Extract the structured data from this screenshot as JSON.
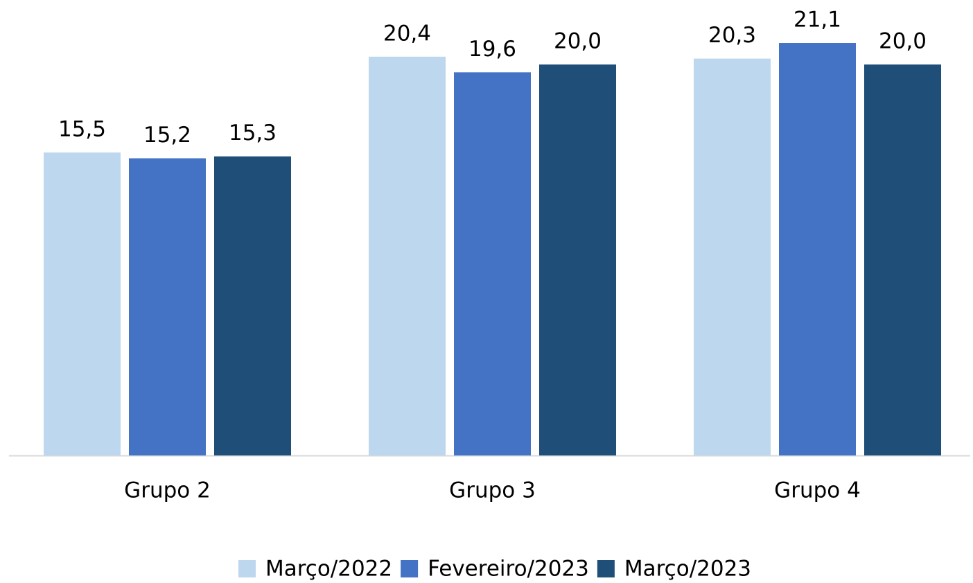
{
  "chart_data": {
    "type": "bar",
    "categories": [
      "Grupo 2",
      "Grupo 3",
      "Grupo 4"
    ],
    "series": [
      {
        "name": "Março/2022",
        "color": "#bdd7ee",
        "values": [
          15.5,
          20.4,
          20.3
        ],
        "value_labels": [
          "15,5",
          "20,4",
          "20,3"
        ]
      },
      {
        "name": "Fevereiro/2023",
        "color": "#4472c4",
        "values": [
          15.2,
          19.6,
          21.1
        ],
        "value_labels": [
          "15,2",
          "19,6",
          "21,1"
        ]
      },
      {
        "name": "Março/2023",
        "color": "#1f4e79",
        "values": [
          15.3,
          20.0,
          20.0
        ],
        "value_labels": [
          "15,3",
          "20,0",
          "20,0"
        ]
      }
    ],
    "ylim": [
      0,
      23.3
    ],
    "legend": "bottom"
  }
}
